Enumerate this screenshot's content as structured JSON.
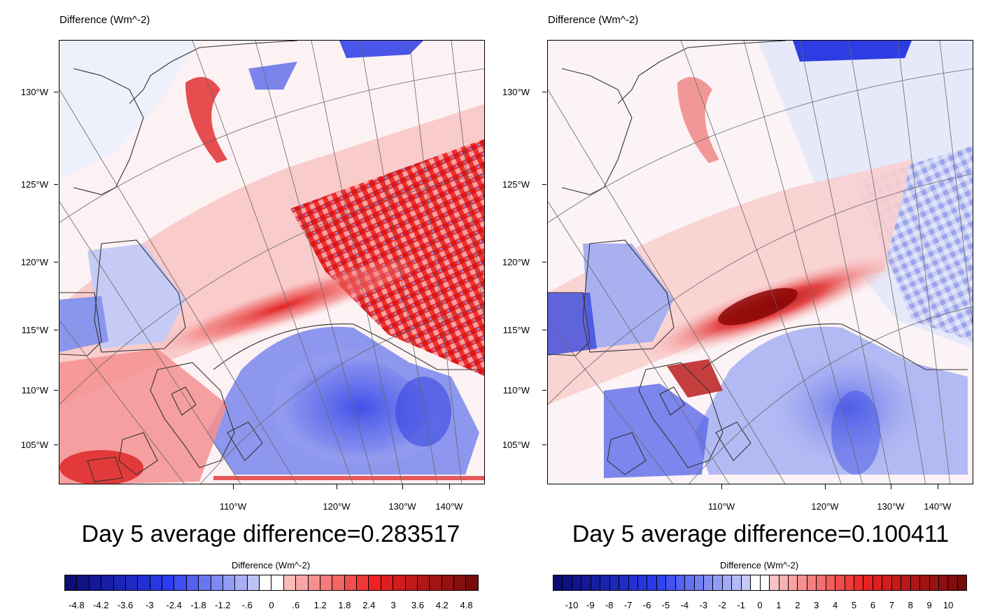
{
  "panels": [
    {
      "id": "left",
      "map_title": "Difference   (Wm^-2)",
      "lat_labels": [
        "130°W",
        "125°W",
        "120°W",
        "115°W",
        "110°W",
        "105°W"
      ],
      "lon_labels": [
        "110°W",
        "120°W",
        "130°W",
        "140°W"
      ],
      "average_text": "Day 5 average difference=0.283517",
      "colorbar_title": "Difference  (Wm^-2)",
      "colorbar_ticks": [
        "-4.8",
        "-4.2",
        "-3.6",
        "-3",
        "-2.4",
        "-1.8",
        "-1.2",
        "-.6",
        "0",
        ".6",
        "1.2",
        "1.8",
        "2.4",
        "3",
        "3.6",
        "4.2",
        "4.8"
      ],
      "colorbar_min": -5.1,
      "colorbar_max": 5.1,
      "colorbar_step": 0.3
    },
    {
      "id": "right",
      "map_title": "Difference   (Wm^-2)",
      "lat_labels": [
        "130°W",
        "125°W",
        "120°W",
        "115°W",
        "110°W",
        "105°W"
      ],
      "lon_labels": [
        "110°W",
        "120°W",
        "130°W",
        "140°W"
      ],
      "average_text": "Day 5 average difference=0.100411",
      "colorbar_title": "Difference  (Wm^-2)",
      "colorbar_ticks": [
        "-10",
        "-9",
        "-8",
        "-7",
        "-6",
        "-5",
        "-4",
        "-3",
        "-2",
        "-1",
        "0",
        "1",
        "2",
        "3",
        "4",
        "5",
        "6",
        "7",
        "8",
        "9",
        "10"
      ],
      "colorbar_min": -11,
      "colorbar_max": 11,
      "colorbar_step": 0.5
    }
  ],
  "colors": {
    "neg_strong": "#0a0a6e",
    "neg_mid": "#2a3cf0",
    "neg_light": "#dcdff8",
    "zero": "#ffffff",
    "pos_light": "#fcdcdc",
    "pos_mid": "#ee2222",
    "pos_strong": "#6e0a0a",
    "coast": "#333333",
    "grid": "#666666"
  }
}
